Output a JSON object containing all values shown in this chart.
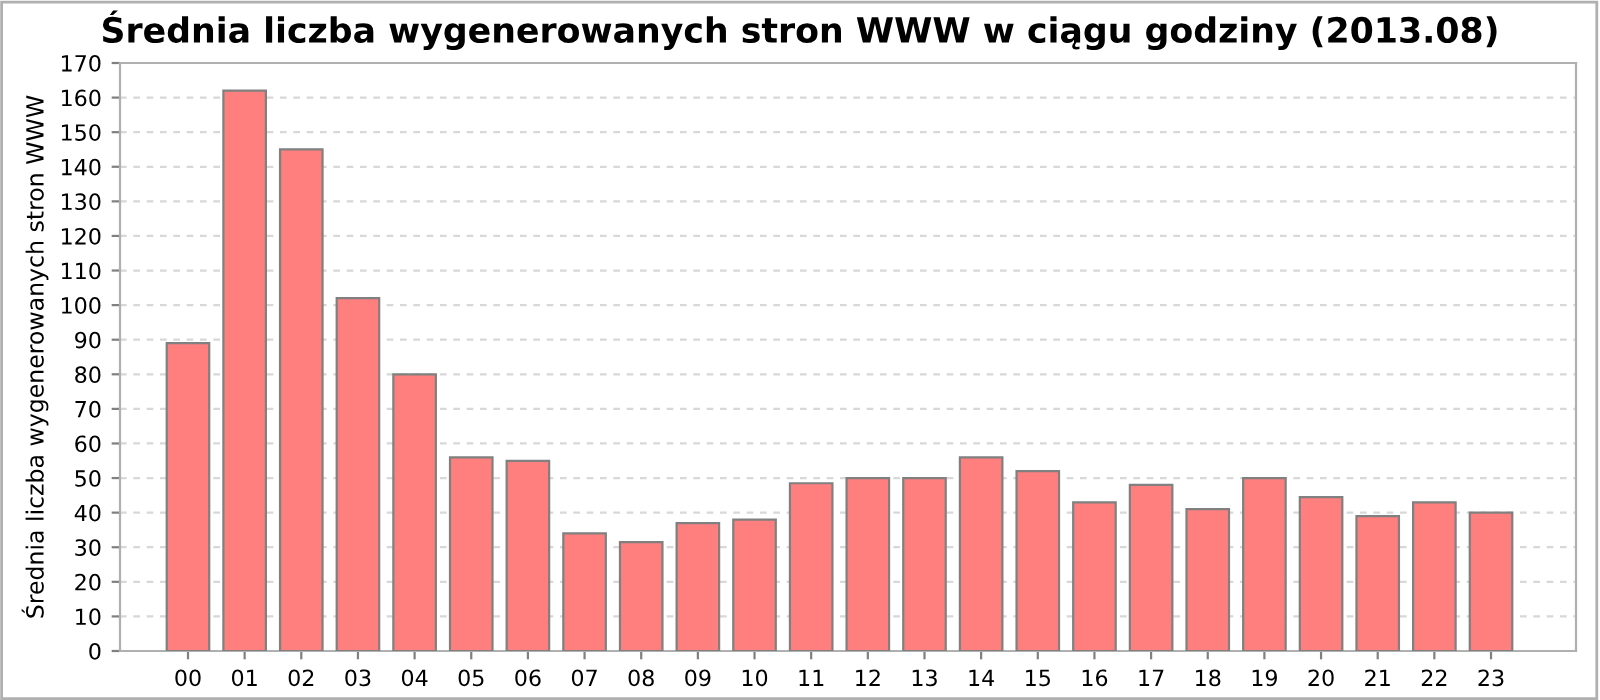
{
  "chart_data": {
    "type": "bar",
    "title": "Średnia liczba wygenerowanych stron WWW w ciągu godziny (2013.08)",
    "ylabel": "Średnia liczba wygenerowanych stron WWW",
    "categories": [
      "00",
      "01",
      "02",
      "03",
      "04",
      "05",
      "06",
      "07",
      "08",
      "09",
      "10",
      "11",
      "12",
      "13",
      "14",
      "15",
      "16",
      "17",
      "18",
      "19",
      "20",
      "21",
      "22",
      "23"
    ],
    "values": [
      89,
      162,
      145,
      102,
      80,
      56,
      55,
      34,
      31.5,
      37,
      38,
      48.5,
      50,
      50,
      56,
      52,
      43,
      48,
      41,
      50,
      44.5,
      39,
      43,
      40
    ],
    "color": "#ff7f7f",
    "ylim": [
      0,
      170
    ],
    "yticks": [
      0,
      10,
      20,
      30,
      40,
      50,
      60,
      70,
      80,
      90,
      100,
      110,
      120,
      130,
      140,
      150,
      160,
      170
    ],
    "grid": "y"
  }
}
